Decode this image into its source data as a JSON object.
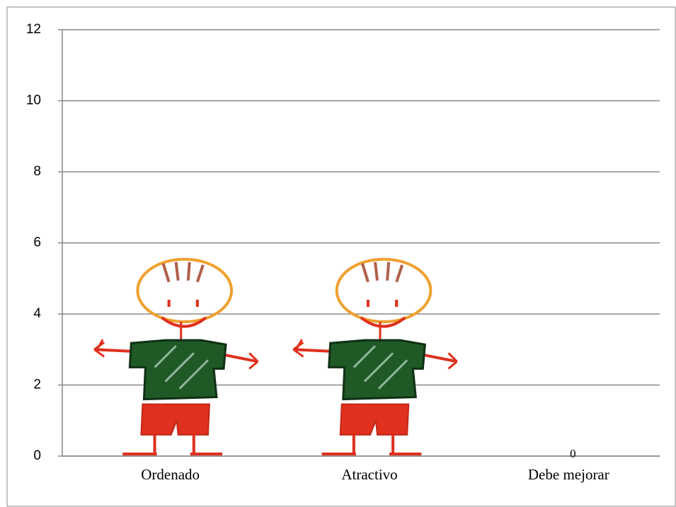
{
  "chart_data": {
    "type": "pictograph",
    "categories": [
      "Ordenado",
      "Atractivo",
      "Debe mejorar"
    ],
    "values": [
      5.5,
      5.5,
      0
    ],
    "value_labels": [
      null,
      null,
      "0"
    ],
    "ylim": [
      0,
      12
    ],
    "yticks": [
      0,
      2,
      4,
      6,
      8,
      10,
      12
    ],
    "grid": true
  }
}
